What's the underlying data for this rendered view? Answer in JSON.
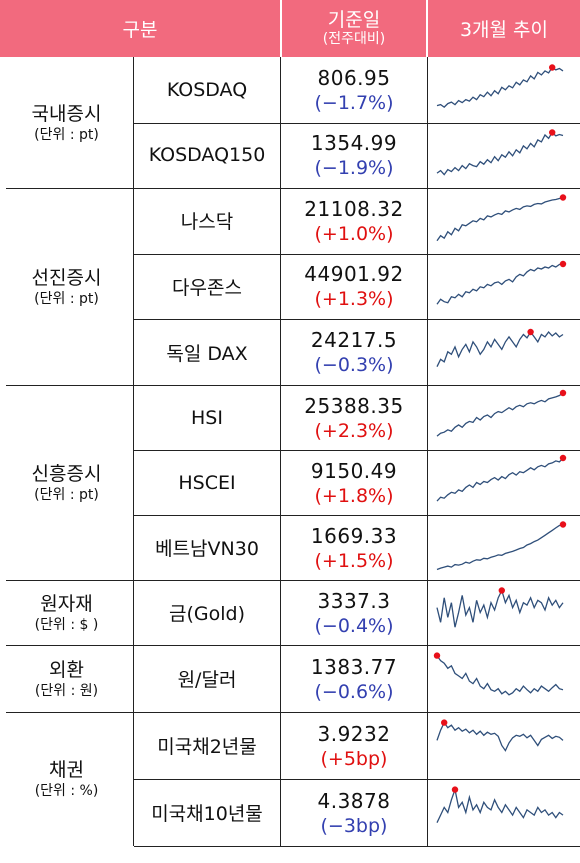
{
  "header": {
    "category": "구분",
    "base_date": "기준일",
    "base_date_sub": "(전주대비)",
    "trend": "3개월 추이"
  },
  "groups": [
    {
      "name": "국내증시",
      "unit": "(단위 : pt)",
      "rows": [
        {
          "name": "KOSDAQ",
          "value": "806.95",
          "change": "(−1.7%)",
          "dir": "down"
        },
        {
          "name": "KOSDAQ150",
          "value": "1354.99",
          "change": "(−1.9%)",
          "dir": "down"
        }
      ]
    },
    {
      "name": "선진증시",
      "unit": "(단위 : pt)",
      "rows": [
        {
          "name": "나스닥",
          "value": "21108.32",
          "change": "(+1.0%)",
          "dir": "up"
        },
        {
          "name": "다우존스",
          "value": "44901.92",
          "change": "(+1.3%)",
          "dir": "up"
        },
        {
          "name": "독일 DAX",
          "value": "24217.5",
          "change": "(−0.3%)",
          "dir": "down"
        }
      ]
    },
    {
      "name": "신흥증시",
      "unit": "(단위 : pt)",
      "rows": [
        {
          "name": "HSI",
          "value": "25388.35",
          "change": "(+2.3%)",
          "dir": "up"
        },
        {
          "name": "HSCEI",
          "value": "9150.49",
          "change": "(+1.8%)",
          "dir": "up"
        },
        {
          "name": "베트남VN30",
          "value": "1669.33",
          "change": "(+1.5%)",
          "dir": "up"
        }
      ]
    },
    {
      "name": "원자재",
      "unit": "(단위 : $ )",
      "rows": [
        {
          "name": "금(Gold)",
          "value": "3337.3",
          "change": "(−0.4%)",
          "dir": "down"
        }
      ]
    },
    {
      "name": "외환",
      "unit": "(단위 : 원)",
      "rows": [
        {
          "name": "원/달러",
          "value": "1383.77",
          "change": "(−0.6%)",
          "dir": "down"
        }
      ]
    },
    {
      "name": "채권",
      "unit": "(단위 : %)",
      "rows": [
        {
          "name": "미국채2년물",
          "value": "3.9232",
          "change": "(+5bp)",
          "dir": "up"
        },
        {
          "name": "미국채10년물",
          "value": "4.3878",
          "change": "(−3bp)",
          "dir": "down"
        }
      ]
    }
  ],
  "colors": {
    "header_bg": "#f26a7e",
    "down": "#3340b0",
    "up": "#e01010",
    "spark_line": "#2f4f7a",
    "spark_peak": "#e8101a"
  },
  "sparklines": [
    [
      0.18,
      0.2,
      0.15,
      0.22,
      0.25,
      0.2,
      0.28,
      0.24,
      0.3,
      0.27,
      0.35,
      0.3,
      0.4,
      0.36,
      0.45,
      0.38,
      0.48,
      0.42,
      0.55,
      0.5,
      0.58,
      0.54,
      0.65,
      0.6,
      0.7,
      0.66,
      0.78,
      0.72,
      0.85,
      0.8,
      0.88,
      0.84,
      0.95,
      0.9,
      0.93,
      0.88
    ],
    [
      0.15,
      0.2,
      0.12,
      0.22,
      0.18,
      0.26,
      0.2,
      0.3,
      0.24,
      0.34,
      0.3,
      0.28,
      0.38,
      0.33,
      0.42,
      0.36,
      0.48,
      0.4,
      0.52,
      0.47,
      0.58,
      0.5,
      0.62,
      0.56,
      0.7,
      0.64,
      0.75,
      0.68,
      0.82,
      0.78,
      0.92,
      0.85,
      0.97,
      0.9,
      0.93,
      0.91
    ],
    [
      0.1,
      0.2,
      0.15,
      0.28,
      0.22,
      0.35,
      0.3,
      0.42,
      0.4,
      0.45,
      0.5,
      0.48,
      0.55,
      0.52,
      0.6,
      0.58,
      0.62,
      0.65,
      0.63,
      0.7,
      0.68,
      0.72,
      0.75,
      0.73,
      0.78,
      0.8,
      0.79,
      0.83,
      0.85,
      0.84,
      0.88,
      0.9,
      0.92,
      0.93,
      0.95,
      0.97
    ],
    [
      0.15,
      0.25,
      0.2,
      0.18,
      0.3,
      0.28,
      0.35,
      0.3,
      0.4,
      0.38,
      0.45,
      0.42,
      0.5,
      0.48,
      0.55,
      0.52,
      0.58,
      0.6,
      0.55,
      0.62,
      0.65,
      0.6,
      0.7,
      0.75,
      0.72,
      0.8,
      0.85,
      0.82,
      0.88,
      0.86,
      0.9,
      0.88,
      0.93,
      0.9,
      0.95,
      0.96
    ],
    [
      0.2,
      0.35,
      0.3,
      0.5,
      0.45,
      0.6,
      0.4,
      0.55,
      0.65,
      0.5,
      0.7,
      0.6,
      0.45,
      0.55,
      0.7,
      0.6,
      0.75,
      0.65,
      0.55,
      0.7,
      0.8,
      0.7,
      0.6,
      0.75,
      0.85,
      0.78,
      0.9,
      0.8,
      0.7,
      0.85,
      0.8,
      0.9,
      0.82,
      0.88,
      0.8,
      0.85
    ],
    [
      0.12,
      0.18,
      0.2,
      0.25,
      0.22,
      0.3,
      0.35,
      0.3,
      0.38,
      0.42,
      0.4,
      0.5,
      0.45,
      0.52,
      0.55,
      0.5,
      0.58,
      0.62,
      0.6,
      0.65,
      0.7,
      0.66,
      0.72,
      0.75,
      0.72,
      0.78,
      0.8,
      0.78,
      0.82,
      0.85,
      0.82,
      0.88,
      0.9,
      0.92,
      0.95,
      1.0
    ],
    [
      0.12,
      0.2,
      0.18,
      0.25,
      0.3,
      0.28,
      0.35,
      0.32,
      0.4,
      0.45,
      0.4,
      0.5,
      0.46,
      0.52,
      0.5,
      0.56,
      0.6,
      0.55,
      0.62,
      0.58,
      0.66,
      0.7,
      0.65,
      0.72,
      0.7,
      0.75,
      0.8,
      0.76,
      0.82,
      0.85,
      0.82,
      0.88,
      0.9,
      0.94,
      0.92,
      1.0
    ],
    [
      0.05,
      0.08,
      0.1,
      0.12,
      0.1,
      0.15,
      0.14,
      0.16,
      0.2,
      0.18,
      0.22,
      0.25,
      0.24,
      0.28,
      0.27,
      0.3,
      0.32,
      0.35,
      0.34,
      0.38,
      0.4,
      0.42,
      0.45,
      0.48,
      0.5,
      0.55,
      0.58,
      0.62,
      0.65,
      0.7,
      0.75,
      0.8,
      0.85,
      0.9,
      0.95,
      0.97
    ],
    [
      0.6,
      0.3,
      0.8,
      0.4,
      0.7,
      0.2,
      0.5,
      0.85,
      0.45,
      0.6,
      0.3,
      0.75,
      0.5,
      0.65,
      0.4,
      0.7,
      0.55,
      0.8,
      0.95,
      0.7,
      0.85,
      0.6,
      0.75,
      0.5,
      0.7,
      0.65,
      0.8,
      0.6,
      0.75,
      0.7,
      0.55,
      0.8,
      0.65,
      0.75,
      0.6,
      0.7
    ],
    [
      0.95,
      0.85,
      0.8,
      0.7,
      0.75,
      0.6,
      0.55,
      0.5,
      0.6,
      0.45,
      0.4,
      0.5,
      0.35,
      0.3,
      0.4,
      0.28,
      0.25,
      0.3,
      0.2,
      0.25,
      0.18,
      0.22,
      0.3,
      0.25,
      0.35,
      0.28,
      0.22,
      0.3,
      0.25,
      0.35,
      0.3,
      0.25,
      0.32,
      0.38,
      0.3,
      0.28
    ],
    [
      0.6,
      0.8,
      0.95,
      0.85,
      0.9,
      0.8,
      0.85,
      0.78,
      0.82,
      0.75,
      0.8,
      0.72,
      0.78,
      0.7,
      0.76,
      0.72,
      0.74,
      0.68,
      0.5,
      0.4,
      0.55,
      0.65,
      0.7,
      0.68,
      0.72,
      0.65,
      0.7,
      0.6,
      0.5,
      0.62,
      0.66,
      0.7,
      0.64,
      0.68,
      0.66,
      0.6
    ],
    [
      0.3,
      0.45,
      0.6,
      0.5,
      0.75,
      0.95,
      0.6,
      0.7,
      0.5,
      0.8,
      0.55,
      0.65,
      0.5,
      0.7,
      0.6,
      0.55,
      0.75,
      0.6,
      0.5,
      0.65,
      0.55,
      0.45,
      0.6,
      0.5,
      0.4,
      0.55,
      0.5,
      0.45,
      0.6,
      0.5,
      0.55,
      0.45,
      0.5,
      0.4,
      0.5,
      0.45
    ]
  ]
}
